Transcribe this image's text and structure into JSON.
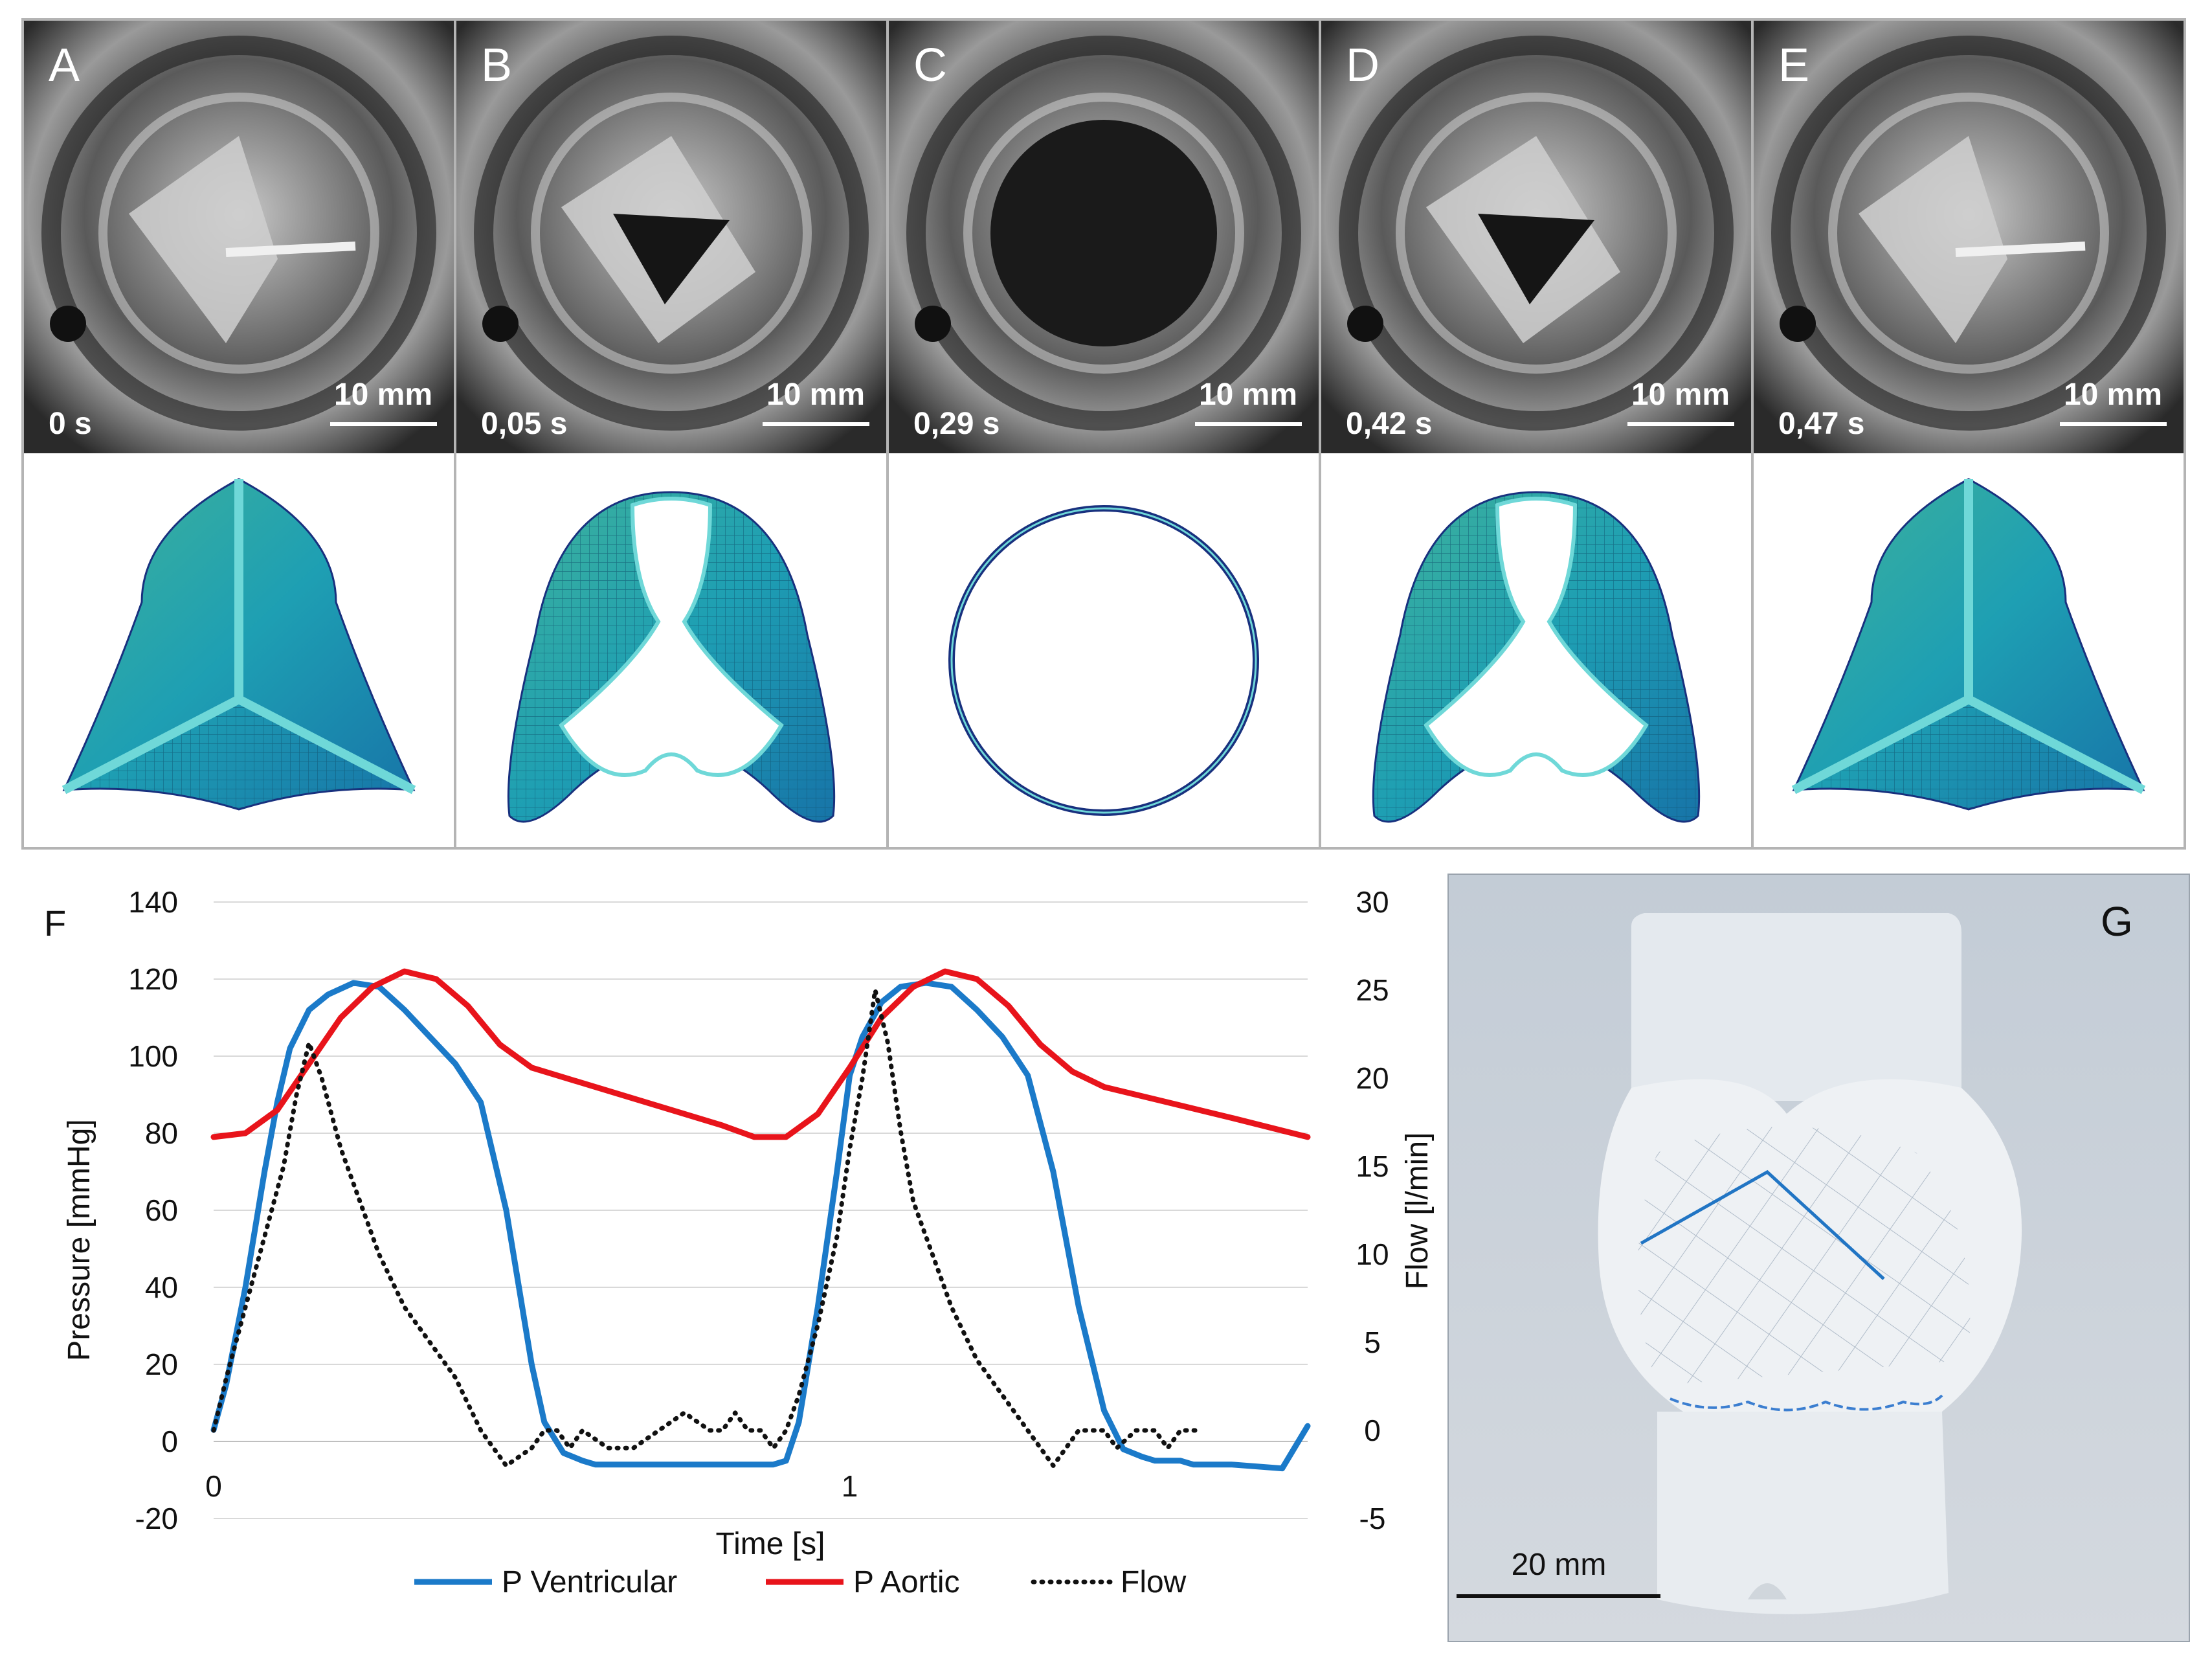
{
  "panels": [
    {
      "letter": "A",
      "time": "0 s",
      "scale": "10 mm",
      "state": "closed"
    },
    {
      "letter": "B",
      "time": "0,05 s",
      "scale": "10 mm",
      "state": "opening"
    },
    {
      "letter": "C",
      "time": "0,29 s",
      "scale": "10 mm",
      "state": "open"
    },
    {
      "letter": "D",
      "time": "0,42 s",
      "scale": "10 mm",
      "state": "closing"
    },
    {
      "letter": "E",
      "time": "0,47 s",
      "scale": "10 mm",
      "state": "closed"
    }
  ],
  "colors": {
    "panel_border": "#b4b4b4",
    "ventricular": "#1b7ac9",
    "aortic": "#e8141b",
    "flow": "#111111",
    "mesh": "#21a7b2",
    "mesh_edge": "#18307e",
    "photo_bg": "#c8d0d8"
  },
  "chart_data": {
    "type": "line",
    "panel_label": "F",
    "xlabel": "Time [s]",
    "ylabel": "Pressure [mmHg]",
    "y2label": "Flow [l/min]",
    "xlim": [
      0,
      1.72
    ],
    "ylim": [
      -20,
      140
    ],
    "y2lim": [
      -5,
      30
    ],
    "xticks": [
      "0",
      "1"
    ],
    "xtick_values": [
      0,
      1
    ],
    "yticks": [
      -20,
      0,
      20,
      40,
      60,
      80,
      100,
      120,
      140
    ],
    "y2ticks": [
      -5,
      0,
      5,
      10,
      15,
      20,
      25,
      30
    ],
    "grid": true,
    "legend_position": "bottom",
    "series": [
      {
        "name": "P Ventricular",
        "axis": "left",
        "style": "solid",
        "x": [
          0,
          0.02,
          0.05,
          0.08,
          0.1,
          0.12,
          0.15,
          0.18,
          0.22,
          0.26,
          0.3,
          0.34,
          0.38,
          0.42,
          0.46,
          0.5,
          0.52,
          0.55,
          0.58,
          0.6,
          0.62,
          0.64,
          0.66,
          0.7,
          0.8,
          0.88,
          0.9,
          0.92,
          0.95,
          0.98,
          1.0,
          1.02,
          1.05,
          1.08,
          1.12,
          1.16,
          1.2,
          1.24,
          1.28,
          1.32,
          1.36,
          1.4,
          1.43,
          1.46,
          1.48,
          1.5,
          1.52,
          1.54,
          1.56,
          1.58,
          1.6,
          1.68,
          1.72
        ],
        "y": [
          3,
          15,
          40,
          70,
          88,
          102,
          112,
          116,
          119,
          118,
          112,
          105,
          98,
          88,
          60,
          20,
          5,
          -3,
          -5,
          -6,
          -6,
          -6,
          -6,
          -6,
          -6,
          -6,
          -5,
          5,
          35,
          70,
          95,
          105,
          114,
          118,
          119,
          118,
          112,
          105,
          95,
          70,
          35,
          8,
          -2,
          -4,
          -5,
          -5,
          -5,
          -6,
          -6,
          -6,
          -6,
          -7,
          4
        ]
      },
      {
        "name": "P Aortic",
        "axis": "left",
        "style": "solid",
        "x": [
          0,
          0.05,
          0.1,
          0.15,
          0.2,
          0.25,
          0.3,
          0.35,
          0.4,
          0.45,
          0.5,
          0.6,
          0.7,
          0.8,
          0.85,
          0.9,
          0.95,
          1.0,
          1.05,
          1.1,
          1.15,
          1.2,
          1.25,
          1.3,
          1.35,
          1.4,
          1.5,
          1.6,
          1.72
        ],
        "y": [
          79,
          80,
          86,
          98,
          110,
          118,
          122,
          120,
          113,
          103,
          97,
          92,
          87,
          82,
          79,
          79,
          85,
          97,
          110,
          118,
          122,
          120,
          113,
          103,
          96,
          92,
          88,
          84,
          79
        ]
      },
      {
        "name": "Flow",
        "axis": "right",
        "style": "dotted",
        "x": [
          0,
          0.02,
          0.05,
          0.08,
          0.11,
          0.13,
          0.15,
          0.17,
          0.2,
          0.23,
          0.26,
          0.3,
          0.34,
          0.38,
          0.42,
          0.46,
          0.5,
          0.52,
          0.54,
          0.56,
          0.58,
          0.62,
          0.66,
          0.7,
          0.74,
          0.78,
          0.8,
          0.82,
          0.84,
          0.86,
          0.88,
          0.9,
          0.92,
          0.95,
          0.98,
          1.0,
          1.02,
          1.04,
          1.06,
          1.08,
          1.1,
          1.13,
          1.16,
          1.2,
          1.24,
          1.28,
          1.32,
          1.36,
          1.4,
          1.42,
          1.45,
          1.48,
          1.5,
          1.52,
          1.55
        ],
        "y": [
          0,
          3,
          7,
          11,
          15,
          19,
          22,
          20,
          16,
          13,
          10,
          7,
          5,
          3,
          0,
          -2,
          -1,
          0,
          0,
          -1,
          0,
          -1,
          -1,
          0,
          1,
          0,
          0,
          1,
          0,
          0,
          -1,
          0,
          2,
          6,
          11,
          16,
          20,
          25,
          22,
          17,
          13,
          10,
          7,
          4,
          2,
          0,
          -2,
          0,
          0,
          -1,
          0,
          0,
          -1,
          0,
          0
        ]
      }
    ]
  },
  "panel_g": {
    "label": "G",
    "scale": "20 mm"
  }
}
